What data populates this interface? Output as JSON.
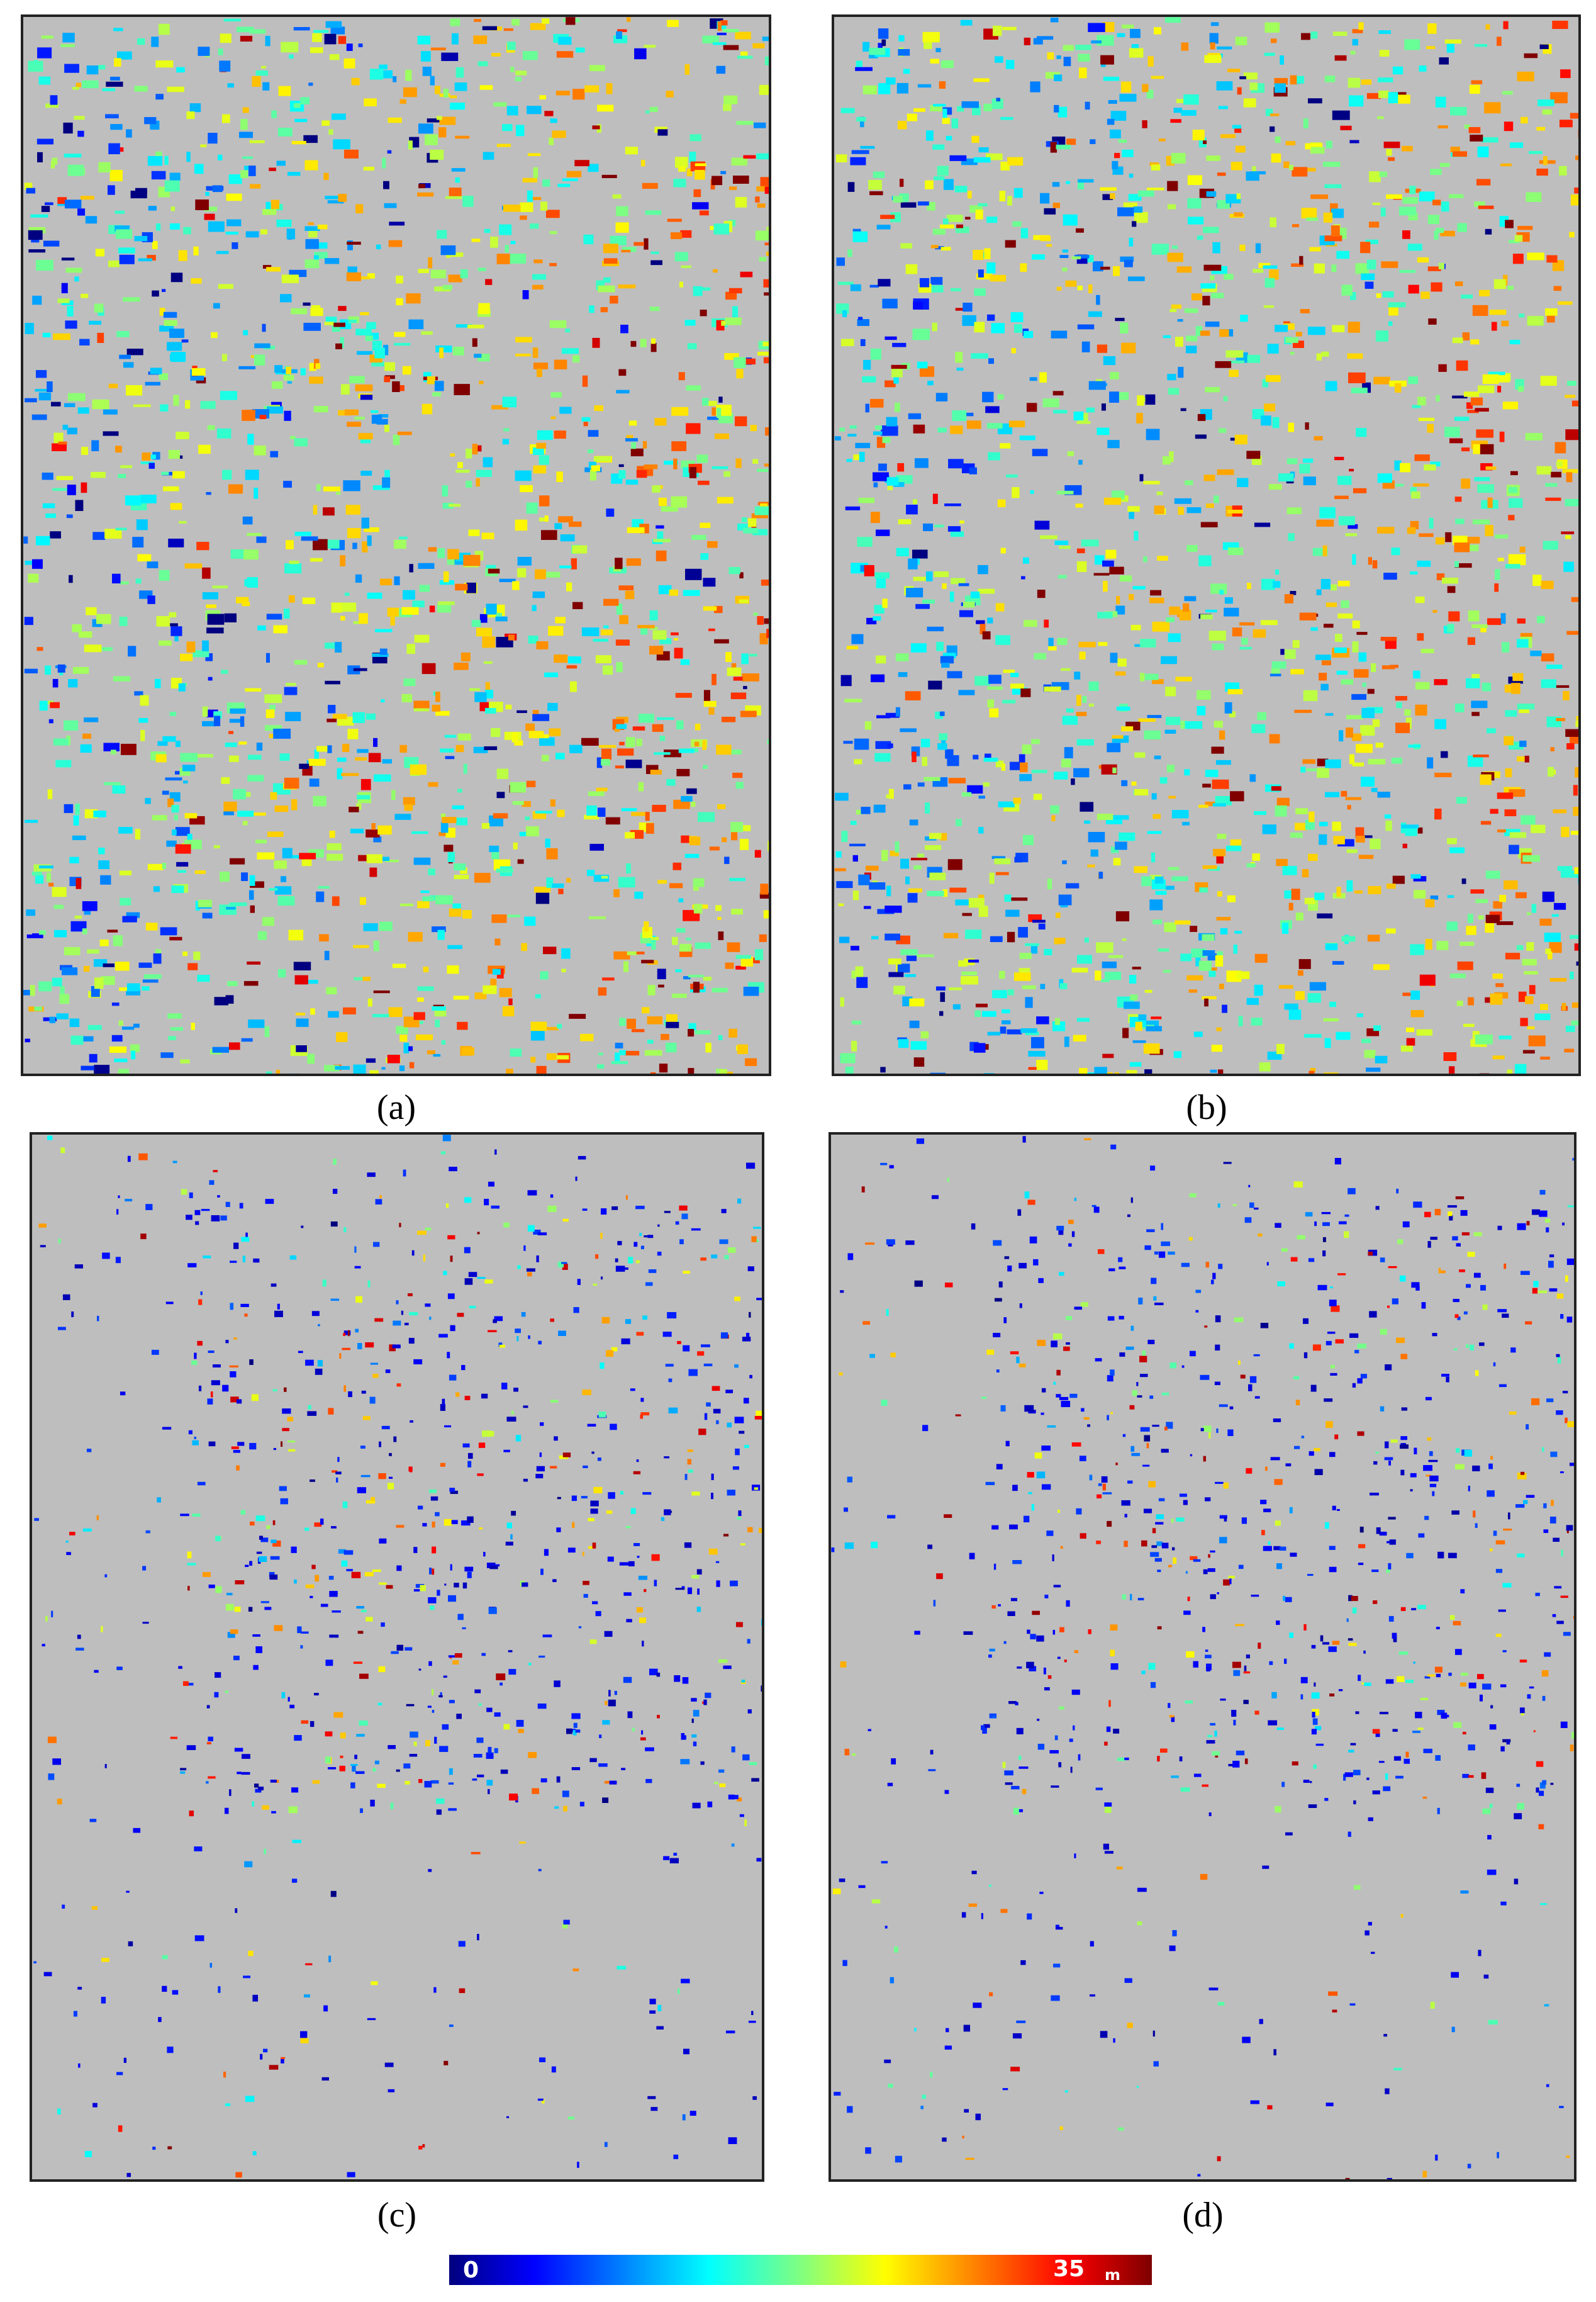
{
  "panels": [
    {
      "label": "(a)"
    },
    {
      "label": "(b)"
    },
    {
      "label": "(c)"
    },
    {
      "label": "(d)"
    }
  ],
  "colorbar": {
    "min": "0",
    "max": "35",
    "unit": "m"
  }
}
